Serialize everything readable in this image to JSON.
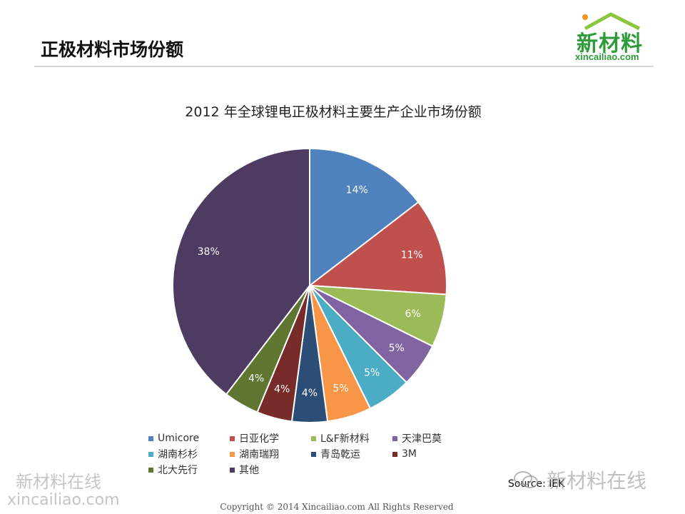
{
  "slide": {
    "title": "正极材料市场份额"
  },
  "logo": {
    "main": "新材料",
    "sub": "xincailiao.com"
  },
  "chart_data": {
    "type": "pie",
    "title": "2012 年全球锂电正极材料主要生产企业市场份额",
    "categories": [
      "Umicore",
      "日亚化学",
      "L&F新材料",
      "天津巴莫",
      "湖南杉杉",
      "湖南瑞翔",
      "青岛乾运",
      "3M",
      "北大先行",
      "其他"
    ],
    "values": [
      14,
      11,
      6,
      5,
      5,
      5,
      4,
      4,
      4,
      38
    ],
    "data_labels": [
      "14%",
      "11%",
      "6%",
      "5%",
      "5%",
      "5%",
      "4%",
      "4%",
      "4%",
      "38%"
    ],
    "colors": [
      "#4f81bd",
      "#c0504d",
      "#9bbb59",
      "#8064a2",
      "#4bacc6",
      "#f79646",
      "#2c4d75",
      "#772c2a",
      "#5f7530",
      "#4d3b62"
    ],
    "legend_position": "bottom"
  },
  "source_text": "Source: IEK",
  "watermarks": {
    "left_line1": "新材料在线",
    "left_line2": "xincailiao.com",
    "right": "新材料在线"
  },
  "footer": "Copyright © 2014   Xincailiao.com    All Rights Reserved"
}
